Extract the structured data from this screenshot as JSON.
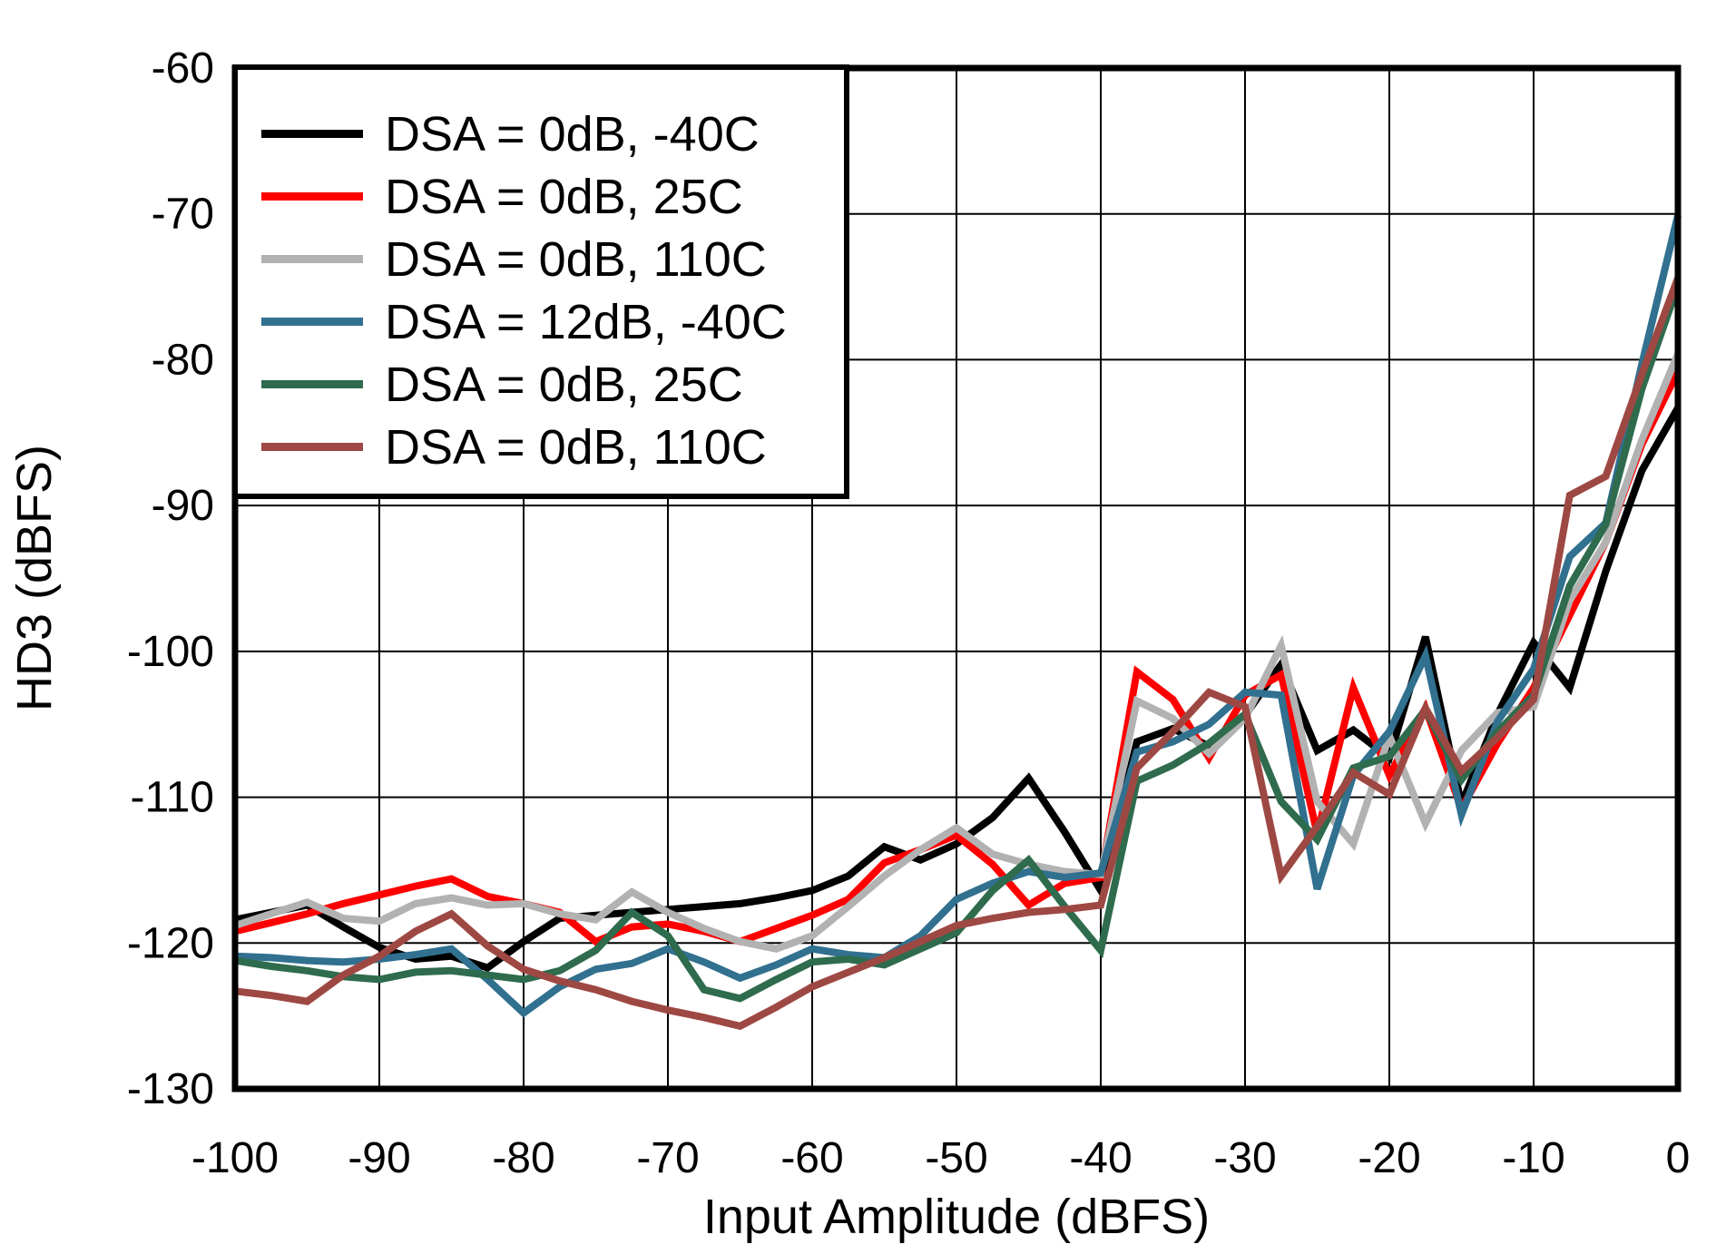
{
  "chart_data": {
    "type": "line",
    "title": "",
    "xlabel": "Input Amplitude (dBFS)",
    "ylabel": "HD3 (dBFS)",
    "xlim": [
      -100,
      0
    ],
    "ylim": [
      -130,
      -60
    ],
    "x_ticks": [
      -100,
      -90,
      -80,
      -70,
      -60,
      -50,
      -40,
      -30,
      -20,
      -10,
      0
    ],
    "y_ticks": [
      -130,
      -120,
      -110,
      -100,
      -90,
      -80,
      -70,
      -60
    ],
    "grid": true,
    "legend_position": "top-left",
    "frame_color": "#000000",
    "grid_color": "#000000",
    "x": [
      -100,
      -97.5,
      -95,
      -92.5,
      -90,
      -87.5,
      -85,
      -82.5,
      -80,
      -77.5,
      -75,
      -72.5,
      -70,
      -67.5,
      -65,
      -62.5,
      -60,
      -57.5,
      -55,
      -52.5,
      -50,
      -47.5,
      -45,
      -42.5,
      -40,
      -37.5,
      -35,
      -32.5,
      -30,
      -27.5,
      -25,
      -22.5,
      -20,
      -17.5,
      -15,
      -12.5,
      -10,
      -7.5,
      -5,
      -2.5,
      0
    ],
    "series": [
      {
        "name": "DSA = 0dB, -40C",
        "color": "#000000",
        "values": [
          -118.4,
          -117.9,
          -117.4,
          -118.9,
          -120.3,
          -121.1,
          -120.9,
          -121.7,
          -119.9,
          -118.3,
          -118.1,
          -117.9,
          -117.7,
          -117.5,
          -117.3,
          -116.9,
          -116.4,
          -115.4,
          -113.4,
          -114.3,
          -113.2,
          -111.4,
          -108.7,
          -112.4,
          -116.4,
          -106.2,
          -105.3,
          -106.5,
          -104.4,
          -100.9,
          -106.8,
          -105.4,
          -107.3,
          -99.0,
          -110.5,
          -104.3,
          -99.4,
          -102.5,
          -94.5,
          -87.6,
          -83.3
        ]
      },
      {
        "name": "DSA = 0dB, 25C",
        "color": "#FF0000",
        "values": [
          -119.2,
          -118.6,
          -118.0,
          -117.3,
          -116.7,
          -116.1,
          -115.6,
          -116.8,
          -117.3,
          -117.9,
          -119.9,
          -118.9,
          -118.7,
          -119.2,
          -119.9,
          -119.0,
          -118.1,
          -117.0,
          -114.5,
          -113.6,
          -112.6,
          -114.6,
          -117.4,
          -115.9,
          -115.5,
          -101.4,
          -103.3,
          -107.3,
          -103.0,
          -101.6,
          -112.5,
          -102.5,
          -108.5,
          -103.9,
          -110.8,
          -106.3,
          -102.5,
          -97.5,
          -92.5,
          -85.8,
          -80.8
        ]
      },
      {
        "name": "DSA = 0dB, 110C",
        "color": "#B2B2B2",
        "values": [
          -118.8,
          -118.0,
          -117.2,
          -118.3,
          -118.5,
          -117.3,
          -116.9,
          -117.4,
          -117.3,
          -118.0,
          -118.4,
          -116.5,
          -117.9,
          -119.0,
          -119.9,
          -120.4,
          -119.5,
          -117.5,
          -115.4,
          -113.6,
          -112.1,
          -113.9,
          -114.6,
          -115.1,
          -115.3,
          -103.4,
          -104.6,
          -107.0,
          -104.6,
          -99.6,
          -110.3,
          -113.2,
          -105.8,
          -111.8,
          -106.8,
          -104.2,
          -103.8,
          -96.5,
          -92.5,
          -85.5,
          -79.6
        ]
      },
      {
        "name": "DSA = 12dB, -40C",
        "color": "#31708F",
        "values": [
          -120.9,
          -121.0,
          -121.2,
          -121.3,
          -121.1,
          -120.8,
          -120.4,
          -122.5,
          -124.8,
          -123.0,
          -121.8,
          -121.4,
          -120.4,
          -121.3,
          -122.4,
          -121.5,
          -120.4,
          -120.8,
          -121.0,
          -119.5,
          -117.0,
          -115.9,
          -115.1,
          -115.5,
          -115.2,
          -106.9,
          -106.2,
          -105.0,
          -102.8,
          -103.0,
          -116.3,
          -108.5,
          -105.5,
          -100.3,
          -111.2,
          -104.8,
          -101.2,
          -93.5,
          -91.2,
          -80.3,
          -70.1
        ]
      },
      {
        "name": "DSA = 0dB, 25C",
        "color": "#2F6B4D",
        "values": [
          -121.2,
          -121.6,
          -121.9,
          -122.3,
          -122.5,
          -122.0,
          -121.9,
          -122.2,
          -122.5,
          -121.9,
          -120.5,
          -117.9,
          -119.5,
          -123.2,
          -123.8,
          -122.5,
          -121.3,
          -121.1,
          -121.5,
          -120.4,
          -119.3,
          -116.4,
          -114.3,
          -117.5,
          -120.5,
          -108.9,
          -107.8,
          -106.3,
          -104.3,
          -110.3,
          -112.9,
          -108.0,
          -107.2,
          -104.0,
          -108.8,
          -105.5,
          -103.0,
          -95.5,
          -91.3,
          -82.0,
          -74.9
        ]
      },
      {
        "name": "DSA = 0dB, 110C",
        "color": "#9E4843",
        "values": [
          -123.3,
          -123.6,
          -124.0,
          -122.2,
          -120.9,
          -119.2,
          -118.0,
          -120.2,
          -121.8,
          -122.6,
          -123.2,
          -124.0,
          -124.6,
          -125.1,
          -125.7,
          -124.4,
          -123.0,
          -122.0,
          -121.0,
          -119.9,
          -118.8,
          -118.3,
          -117.9,
          -117.7,
          -117.4,
          -108.0,
          -105.5,
          -102.8,
          -103.8,
          -115.4,
          -112.0,
          -108.3,
          -109.8,
          -103.9,
          -108.2,
          -105.9,
          -103.3,
          -89.3,
          -88.0,
          -81.0,
          -74.4
        ]
      }
    ]
  }
}
